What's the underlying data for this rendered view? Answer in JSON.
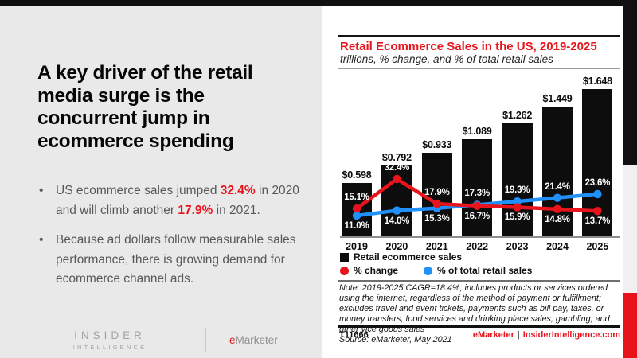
{
  "slide": {
    "title": "A key driver of the retail media surge is the concurrent jump in ecommerce spending",
    "bullets": [
      {
        "segments": [
          {
            "text": "US ecommerce sales jumped "
          },
          {
            "text": "32.4%",
            "highlight": true
          },
          {
            "text": " in 2020 and will climb another "
          },
          {
            "text": "17.9%",
            "highlight": true
          },
          {
            "text": " in 2021."
          }
        ]
      },
      {
        "segments": [
          {
            "text": "Because ad dollars follow measurable sales performance, there is growing demand for ecommerce channel ads."
          }
        ]
      }
    ]
  },
  "branding": {
    "insider_line1": "INSIDER",
    "insider_line2": "INTELLIGENCE",
    "emarketer_e": "e",
    "emarketer_rest": "Marketer"
  },
  "chart_card": {
    "note": "Note: 2019-2025 CAGR=18.4%; includes products or services ordered using the internet, regardless of the method of payment or fulfillment; excludes travel and event tickets, payments such as bill pay, taxes, or money transfers, food services and drinking place sales, gambling, and other vice goods sales",
    "source": "Source: eMarketer, May 2021",
    "footer_id": "T11666",
    "footer_brand": "eMarketer",
    "footer_separator": "|",
    "footer_site": "InsiderIntelligence.com"
  },
  "chart_data": {
    "type": "bar+line",
    "title": "Retail Ecommerce Sales in the US, 2019-2025",
    "subtitle": "trillions, % change, and % of total retail sales",
    "categories": [
      "2019",
      "2020",
      "2021",
      "2022",
      "2023",
      "2024",
      "2025"
    ],
    "series": [
      {
        "name": "Retail ecommerce sales",
        "type": "bar",
        "color": "#0d0d0d",
        "unit": "$ trillions",
        "values": [
          0.598,
          0.792,
          0.933,
          1.089,
          1.262,
          1.449,
          1.648
        ],
        "labels": [
          "$0.598",
          "$0.792",
          "$0.933",
          "$1.089",
          "$1.262",
          "$1.449",
          "$1.648"
        ]
      },
      {
        "name": "% change",
        "type": "line",
        "color": "#e8141c",
        "values": [
          15.1,
          32.4,
          17.9,
          16.7,
          15.9,
          14.8,
          13.7
        ],
        "labels": [
          "15.1%",
          "32.4%",
          "17.9%",
          "16.7%",
          "15.9%",
          "14.8%",
          "13.7%"
        ]
      },
      {
        "name": "% of total retail sales",
        "type": "line",
        "color": "#2090fb",
        "values": [
          11.0,
          14.0,
          15.3,
          17.3,
          19.3,
          21.4,
          23.6
        ],
        "labels": [
          "11.0%",
          "14.0%",
          "15.3%",
          "17.3%",
          "19.3%",
          "21.4%",
          "23.6%"
        ]
      }
    ],
    "legend_position": "below",
    "grid": false,
    "bar_ylim": [
      0,
      1.8
    ]
  },
  "colors": {
    "accent_red": "#e8141c",
    "line_blue": "#2090fb",
    "bar_black": "#0d0d0d",
    "left_bg": "#e9e9e9",
    "top_bar": "#101010",
    "strip_gray": "#f1f1f1"
  }
}
